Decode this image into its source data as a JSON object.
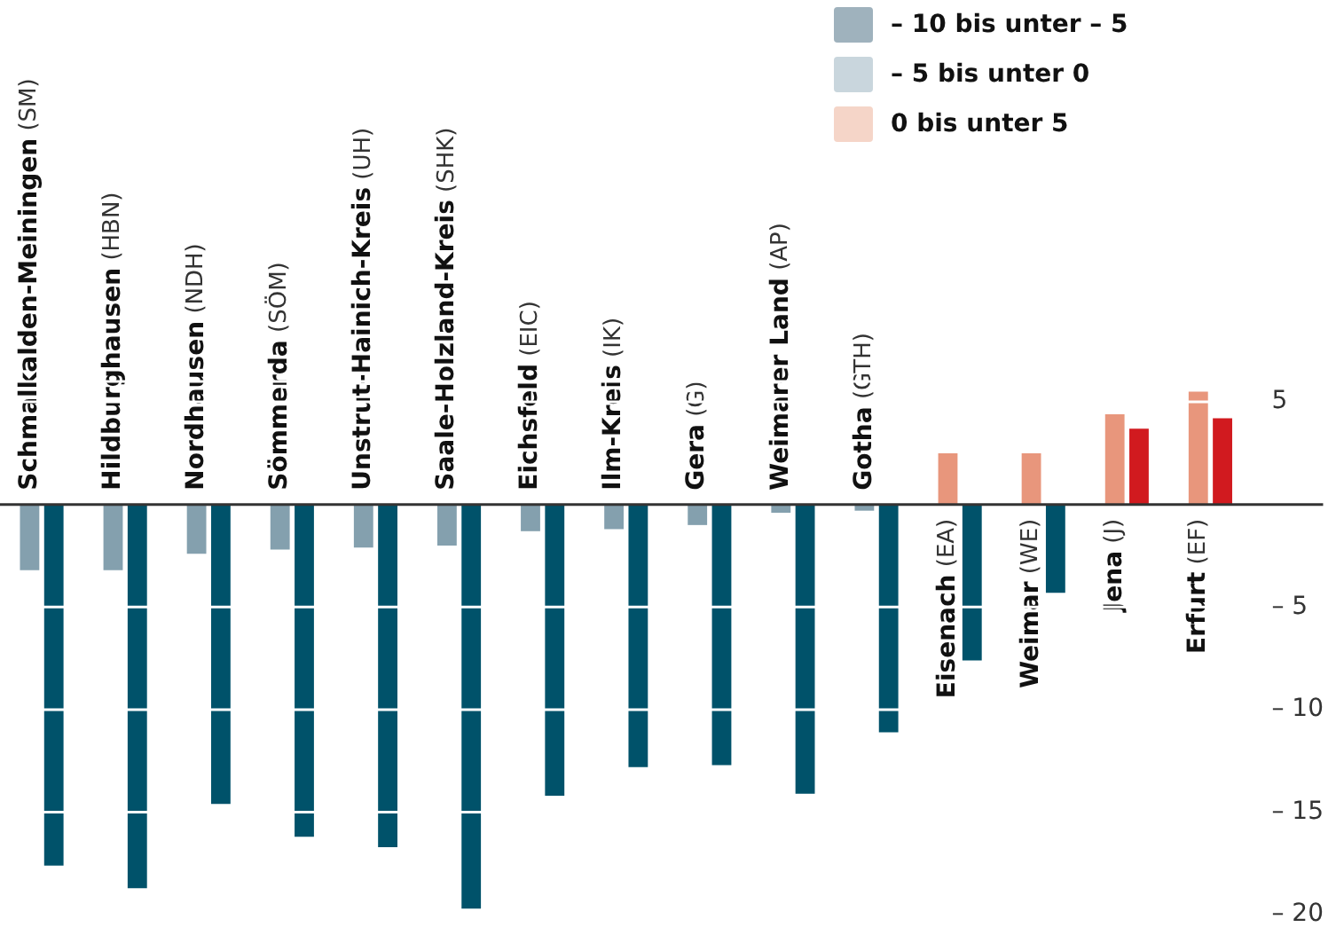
{
  "chart_data": {
    "type": "bar",
    "categories": [
      "Schmalkalden-Meiningen (SM)",
      "Hildburghausen (HBN)",
      "Nordhausen (NDH)",
      "Sömmerda (SÖM)",
      "Unstrut-Hainich-Kreis (UH)",
      "Saale-Holzland-Kreis (SHK)",
      "Eichsfeld (EIC)",
      "Ilm-Kreis (IK)",
      "Gera (G)",
      "Weimarer Land (AP)",
      "Gotha (GTH)",
      "Eisenach (EA)",
      "Weimar (WE)",
      "Jena (J)",
      "Erfurt (EF)"
    ],
    "series": [
      {
        "colors": [
          "#84a0ae",
          "#84a0ae",
          "#84a0ae",
          "#84a0ae",
          "#84a0ae",
          "#84a0ae",
          "#84a0ae",
          "#84a0ae",
          "#84a0ae",
          "#84a0ae",
          "#84a0ae",
          "#e8967c",
          "#e8967c",
          "#e8967c",
          "#e8967c"
        ],
        "values": [
          -3.2,
          -3.2,
          -2.4,
          -2.2,
          -2.1,
          -2.0,
          -1.3,
          -1.2,
          -1.0,
          -0.4,
          -0.3,
          2.5,
          2.5,
          4.4,
          5.5
        ]
      },
      {
        "colors": [
          "#00526a",
          "#00526a",
          "#00526a",
          "#00526a",
          "#00526a",
          "#00526a",
          "#00526a",
          "#00526a",
          "#00526a",
          "#00526a",
          "#00526a",
          "#00526a",
          "#00526a",
          "#d11a1f",
          "#d11a1f"
        ],
        "values": [
          -17.6,
          -18.7,
          -14.6,
          -16.2,
          -16.7,
          -19.7,
          -14.2,
          -12.8,
          -12.7,
          -14.1,
          -11.1,
          -7.6,
          -4.3,
          3.7,
          4.2
        ]
      }
    ],
    "ylim": [
      -20,
      6
    ],
    "yticks": [
      {
        "value": 6,
        "label": null
      },
      {
        "value": 5,
        "label": "5"
      },
      {
        "value": 0,
        "label": null
      },
      {
        "value": -5,
        "label": "– 5"
      },
      {
        "value": -10,
        "label": "– 10"
      },
      {
        "value": -15,
        "label": "– 15"
      },
      {
        "value": -20,
        "label": "– 20"
      }
    ],
    "grid": "y",
    "annotations": [
      "– 10 bis unter – 5",
      "– 5 bis unter 0",
      "0 bis unter 5"
    ]
  }
}
